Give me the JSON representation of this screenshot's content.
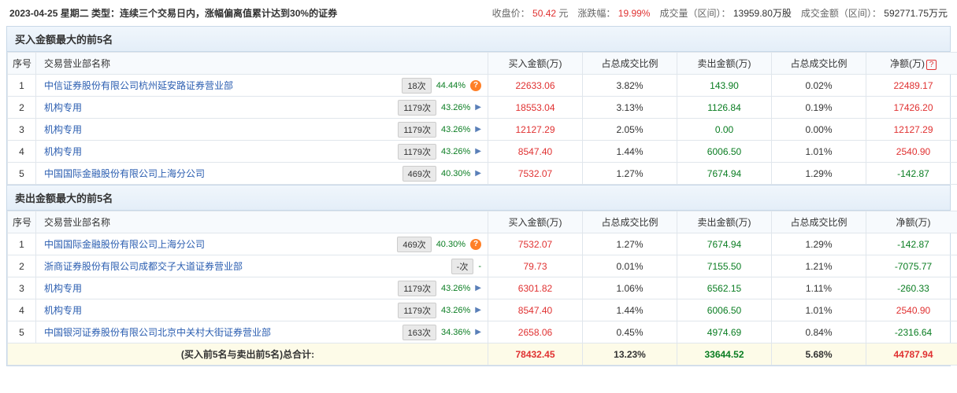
{
  "header": {
    "date_type": "2023-04-25 星期二 类型：连续三个交易日内，涨幅偏离值累计达到30%的证券",
    "close_label": "收盘价：",
    "close_value": "50.42",
    "close_unit": "元",
    "chg_label": "涨跌幅：",
    "chg_value": "19.99%",
    "vol_label": "成交量（区间）：",
    "vol_value": "13959.80万股",
    "amt_label": "成交金额（区间）：",
    "amt_value": "592771.75万元"
  },
  "columns": {
    "idx": "序号",
    "name": "交易营业部名称",
    "buy_amt": "买入金额(万)",
    "buy_pct": "占总成交比例",
    "sell_amt": "卖出金额(万)",
    "sell_pct": "占总成交比例",
    "net": "净额(万)"
  },
  "buy_panel": {
    "title": "买入金额最大的前5名",
    "rows": [
      {
        "idx": "1",
        "name": "中信证券股份有限公司杭州延安路证券营业部",
        "freq": "18次",
        "pct": "44.44%",
        "icon": "q",
        "buy_amt": "22633.06",
        "buy_pct": "3.82%",
        "sell_amt": "143.90",
        "sell_pct": "0.02%",
        "net": "22489.17",
        "net_class": "red"
      },
      {
        "idx": "2",
        "name": "机构专用",
        "freq": "1179次",
        "pct": "43.26%",
        "icon": "arrow",
        "buy_amt": "18553.04",
        "buy_pct": "3.13%",
        "sell_amt": "1126.84",
        "sell_pct": "0.19%",
        "net": "17426.20",
        "net_class": "red"
      },
      {
        "idx": "3",
        "name": "机构专用",
        "freq": "1179次",
        "pct": "43.26%",
        "icon": "arrow",
        "buy_amt": "12127.29",
        "buy_pct": "2.05%",
        "sell_amt": "0.00",
        "sell_pct": "0.00%",
        "net": "12127.29",
        "net_class": "red"
      },
      {
        "idx": "4",
        "name": "机构专用",
        "freq": "1179次",
        "pct": "43.26%",
        "icon": "arrow",
        "buy_amt": "8547.40",
        "buy_pct": "1.44%",
        "sell_amt": "6006.50",
        "sell_pct": "1.01%",
        "net": "2540.90",
        "net_class": "red"
      },
      {
        "idx": "5",
        "name": "中国国际金融股份有限公司上海分公司",
        "freq": "469次",
        "pct": "40.30%",
        "icon": "arrow",
        "buy_amt": "7532.07",
        "buy_pct": "1.27%",
        "sell_amt": "7674.94",
        "sell_pct": "1.29%",
        "net": "-142.87",
        "net_class": "green"
      }
    ]
  },
  "sell_panel": {
    "title": "卖出金额最大的前5名",
    "rows": [
      {
        "idx": "1",
        "name": "中国国际金融股份有限公司上海分公司",
        "freq": "469次",
        "pct": "40.30%",
        "icon": "q",
        "buy_amt": "7532.07",
        "buy_pct": "1.27%",
        "sell_amt": "7674.94",
        "sell_pct": "1.29%",
        "net": "-142.87",
        "net_class": "green"
      },
      {
        "idx": "2",
        "name": "浙商证券股份有限公司成都交子大道证券营业部",
        "freq": "-次",
        "pct": "-",
        "icon": "none",
        "buy_amt": "79.73",
        "buy_pct": "0.01%",
        "sell_amt": "7155.50",
        "sell_pct": "1.21%",
        "net": "-7075.77",
        "net_class": "green"
      },
      {
        "idx": "3",
        "name": "机构专用",
        "freq": "1179次",
        "pct": "43.26%",
        "icon": "arrow",
        "buy_amt": "6301.82",
        "buy_pct": "1.06%",
        "sell_amt": "6562.15",
        "sell_pct": "1.11%",
        "net": "-260.33",
        "net_class": "green"
      },
      {
        "idx": "4",
        "name": "机构专用",
        "freq": "1179次",
        "pct": "43.26%",
        "icon": "arrow",
        "buy_amt": "8547.40",
        "buy_pct": "1.44%",
        "sell_amt": "6006.50",
        "sell_pct": "1.01%",
        "net": "2540.90",
        "net_class": "red"
      },
      {
        "idx": "5",
        "name": "中国银河证券股份有限公司北京中关村大街证券营业部",
        "freq": "163次",
        "pct": "34.36%",
        "icon": "arrow",
        "buy_amt": "2658.06",
        "buy_pct": "0.45%",
        "sell_amt": "4974.69",
        "sell_pct": "0.84%",
        "net": "-2316.64",
        "net_class": "green"
      }
    ]
  },
  "total": {
    "label": "(买入前5名与卖出前5名)总合计:",
    "buy_amt": "78432.45",
    "buy_pct": "13.23%",
    "sell_amt": "33644.52",
    "sell_pct": "5.68%",
    "net": "44787.94"
  }
}
